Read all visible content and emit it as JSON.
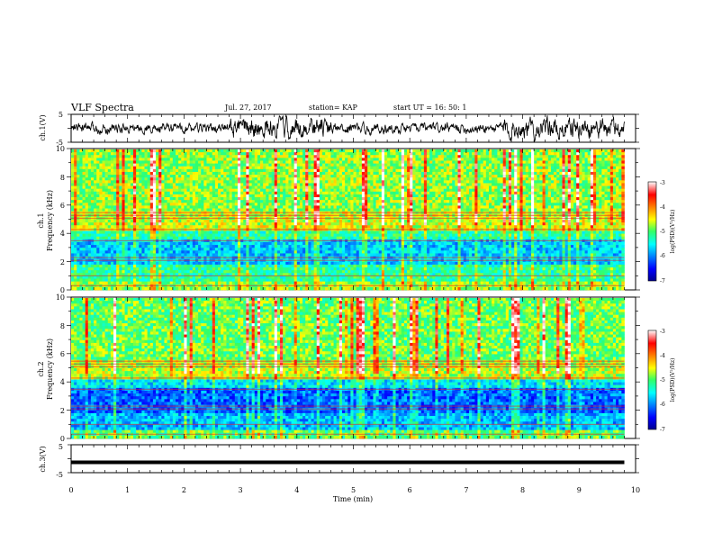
{
  "header": {
    "title": "VLF Spectra",
    "date": "Jul. 27, 2017",
    "station": "station= KAP",
    "start": "start  UT =   16: 50: 1"
  },
  "chart_data": [
    {
      "type": "line",
      "panel": "ch1-waveform",
      "ylabel": "ch.1(V)",
      "ylim": [
        -5,
        5
      ],
      "yticks": [
        "5",
        "-5"
      ],
      "xlim": [
        0,
        10
      ],
      "note_values": "noisy waveform trace, amplitude mostly within ±2.5 V"
    },
    {
      "type": "heatmap",
      "panel": "ch1-spectrogram",
      "ylabel": "ch.1\nFrequency (kHz)",
      "ylim": [
        0,
        10
      ],
      "yticks": [
        "0",
        "2",
        "4",
        "6",
        "8",
        "10"
      ],
      "xlim": [
        0,
        9.8
      ],
      "colorbar": {
        "label": "log(PSD)(V²/Hz)",
        "ticks": [
          "-3",
          "-4",
          "-5",
          "-6",
          "-7"
        ],
        "range": [
          -7,
          -3
        ]
      }
    },
    {
      "type": "heatmap",
      "panel": "ch2-spectrogram",
      "ylabel": "ch.2\nFrequency (kHz)",
      "ylim": [
        0,
        10
      ],
      "yticks": [
        "0",
        "2",
        "4",
        "6",
        "8",
        "10"
      ],
      "xlim": [
        0,
        9.8
      ],
      "colorbar": {
        "label": "log(PSD)(V²/Hz)",
        "ticks": [
          "-3",
          "-4",
          "-5",
          "-6",
          "-7"
        ],
        "range": [
          -7,
          -3
        ]
      }
    },
    {
      "type": "line",
      "panel": "ch3-waveform",
      "ylabel": "ch.3(V)",
      "ylim": [
        -5,
        5
      ],
      "yticks": [
        "5",
        "-5"
      ],
      "xlim": [
        0,
        10
      ],
      "series": [
        {
          "x": [
            0,
            9.8
          ],
          "y": [
            -1.3,
            -1.3
          ]
        }
      ]
    }
  ],
  "xaxis": {
    "label": "Time (min)",
    "ticks": [
      "0",
      "1",
      "2",
      "3",
      "4",
      "5",
      "6",
      "7",
      "8",
      "9",
      "10"
    ]
  }
}
